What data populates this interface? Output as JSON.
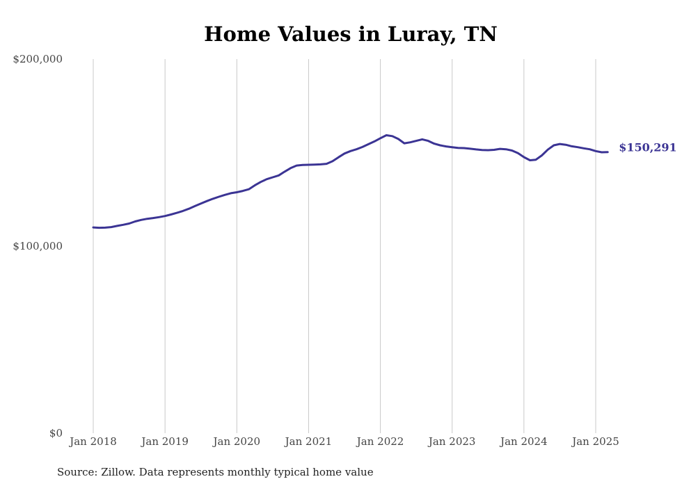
{
  "chart_data": {
    "type": "line",
    "title": "Home Values in Luray, TN",
    "source": "Source: Zillow. Data represents monthly typical home value",
    "ylim": [
      0,
      200000
    ],
    "y_ticks": [
      {
        "value": 0,
        "label": "$0"
      },
      {
        "value": 100000,
        "label": "$100,000"
      },
      {
        "value": 200000,
        "label": "$200,000"
      }
    ],
    "x_ticks": [
      {
        "value": "2018-01",
        "label": "Jan 2018"
      },
      {
        "value": "2019-01",
        "label": "Jan 2019"
      },
      {
        "value": "2020-01",
        "label": "Jan 2020"
      },
      {
        "value": "2021-01",
        "label": "Jan 2021"
      },
      {
        "value": "2022-01",
        "label": "Jan 2022"
      },
      {
        "value": "2023-01",
        "label": "Jan 2023"
      },
      {
        "value": "2024-01",
        "label": "Jan 2024"
      },
      {
        "value": "2025-01",
        "label": "Jan 2025"
      }
    ],
    "grid": "vertical",
    "end_label": "$150,291",
    "line_color": "#3b3494",
    "series": [
      {
        "x": [
          "2018-01",
          "2018-02",
          "2018-03",
          "2018-04",
          "2018-05",
          "2018-06",
          "2018-07",
          "2018-08",
          "2018-09",
          "2018-10",
          "2018-11",
          "2018-12",
          "2019-01",
          "2019-02",
          "2019-03",
          "2019-04",
          "2019-05",
          "2019-06",
          "2019-07",
          "2019-08",
          "2019-09",
          "2019-10",
          "2019-11",
          "2019-12",
          "2020-01",
          "2020-02",
          "2020-03",
          "2020-04",
          "2020-05",
          "2020-06",
          "2020-07",
          "2020-08",
          "2020-09",
          "2020-10",
          "2020-11",
          "2020-12",
          "2021-01",
          "2021-02",
          "2021-03",
          "2021-04",
          "2021-05",
          "2021-06",
          "2021-07",
          "2021-08",
          "2021-09",
          "2021-10",
          "2021-11",
          "2021-12",
          "2022-01",
          "2022-02",
          "2022-03",
          "2022-04",
          "2022-05",
          "2022-06",
          "2022-07",
          "2022-08",
          "2022-09",
          "2022-10",
          "2022-11",
          "2022-12",
          "2023-01",
          "2023-02",
          "2023-03",
          "2023-04",
          "2023-05",
          "2023-06",
          "2023-07",
          "2023-08",
          "2023-09",
          "2023-10",
          "2023-11",
          "2023-12",
          "2024-01",
          "2024-02",
          "2024-03",
          "2024-04",
          "2024-05",
          "2024-06",
          "2024-07",
          "2024-08",
          "2024-09",
          "2024-10",
          "2024-11",
          "2024-12",
          "2025-01",
          "2025-02",
          "2025-03"
        ],
        "values": [
          110000,
          109800,
          109900,
          110200,
          110800,
          111400,
          112100,
          113200,
          114000,
          114600,
          115000,
          115500,
          116100,
          116900,
          117800,
          118800,
          120000,
          121400,
          122800,
          124100,
          125300,
          126400,
          127400,
          128300,
          128800,
          129500,
          130400,
          132500,
          134300,
          135800,
          136800,
          137800,
          139800,
          141700,
          143100,
          143400,
          143500,
          143600,
          143700,
          144000,
          145400,
          147500,
          149500,
          150800,
          151800,
          153000,
          154500,
          156000,
          157700,
          159300,
          158800,
          157300,
          155000,
          155500,
          156300,
          157100,
          156300,
          154800,
          153900,
          153300,
          152900,
          152500,
          152400,
          152100,
          151700,
          151400,
          151300,
          151500,
          152000,
          151800,
          151100,
          149700,
          147600,
          145900,
          146200,
          148500,
          151600,
          153900,
          154600,
          154200,
          153400,
          152900,
          152300,
          151800,
          150800,
          150200,
          150291
        ]
      }
    ]
  }
}
